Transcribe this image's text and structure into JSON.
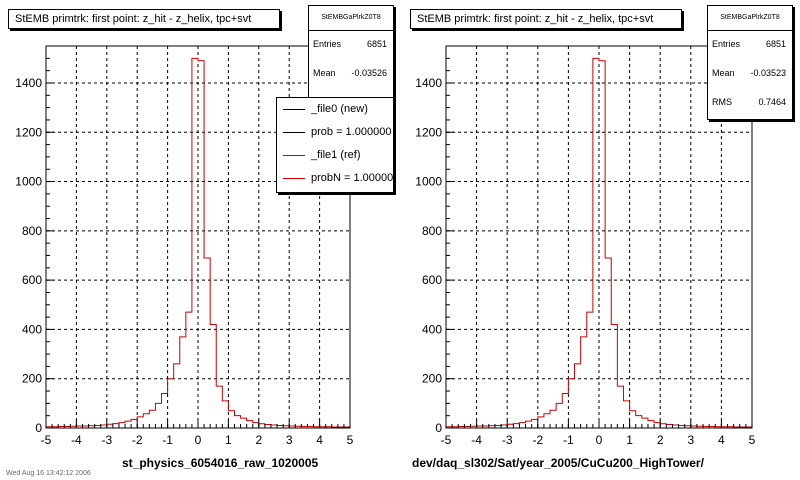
{
  "panels": [
    {
      "title": "StEMB primtrk: first point: z_hit - z_helix, tpc+svt",
      "stats": {
        "name": "StEMBGaPlrkZ0T8",
        "entries_label": "Entries",
        "entries": "6851",
        "mean_label": "Mean",
        "mean": "-0.03526"
      },
      "xlabel": "st_physics_6054016_raw_1020005",
      "legend": [
        {
          "label": "_file0 (new)",
          "color": "#000000"
        },
        {
          "label": "prob = 1.000000",
          "color": "#000000"
        },
        {
          "label": "_file1 (ref)",
          "color": "#cc0000"
        },
        {
          "label": "probN = 1.000000",
          "color": "#cc0000"
        }
      ]
    },
    {
      "title": "StEMB primtrk: first point: z_hit - z_helix, tpc+svt",
      "stats": {
        "name": "StEMBGaPlrkZ0T8",
        "entries_label": "Entries",
        "entries": "6851",
        "mean_label": "Mean",
        "mean": "-0.03523",
        "rms_label": "RMS",
        "rms": "0.7464"
      },
      "xlabel": "dev/daq_sl302/Sat/year_2005/CuCu200_HighTower/"
    }
  ],
  "footer": "Wed Aug 16 13:42:12 2006",
  "chart_data": [
    {
      "type": "bar",
      "style": "step-histogram",
      "title": "StEMB primtrk: first point: z_hit - z_helix, tpc+svt",
      "xlabel": "st_physics_6054016_raw_1020005",
      "ylabel": "",
      "xlim": [
        -5,
        5
      ],
      "ylim": [
        0,
        1550
      ],
      "xticks": [
        -5,
        -4,
        -3,
        -2,
        -1,
        0,
        1,
        2,
        3,
        4,
        5
      ],
      "yticks": [
        0,
        200,
        400,
        600,
        800,
        1000,
        1200,
        1400
      ],
      "grid": true,
      "legend_position": "top-right",
      "bin_width": 0.2,
      "x": [
        -5.0,
        -4.8,
        -4.6,
        -4.4,
        -4.2,
        -4.0,
        -3.8,
        -3.6,
        -3.4,
        -3.2,
        -3.0,
        -2.8,
        -2.6,
        -2.4,
        -2.2,
        -2.0,
        -1.8,
        -1.6,
        -1.4,
        -1.2,
        -1.0,
        -0.8,
        -0.6,
        -0.4,
        -0.2,
        0.0,
        0.2,
        0.4,
        0.6,
        0.8,
        1.0,
        1.2,
        1.4,
        1.6,
        1.8,
        2.0,
        2.2,
        2.4,
        2.6,
        2.8,
        3.0,
        3.2,
        3.4,
        3.6,
        3.8,
        4.0,
        4.2,
        4.4,
        4.6,
        4.8
      ],
      "series": [
        {
          "name": "_file1 (ref)",
          "color": "#cc0000",
          "values": [
            5,
            5,
            6,
            6,
            7,
            8,
            8,
            9,
            10,
            12,
            15,
            18,
            22,
            28,
            35,
            45,
            58,
            72,
            100,
            140,
            200,
            260,
            370,
            470,
            1500,
            1490,
            690,
            420,
            170,
            110,
            70,
            50,
            40,
            30,
            22,
            17,
            14,
            12,
            10,
            9,
            8,
            7,
            6,
            6,
            5,
            5,
            5,
            4,
            4,
            4
          ]
        }
      ]
    },
    {
      "type": "bar",
      "style": "step-histogram",
      "title": "StEMB primtrk: first point: z_hit - z_helix, tpc+svt",
      "xlabel": "dev/daq_sl302/Sat/year_2005/CuCu200_HighTower/",
      "ylabel": "",
      "xlim": [
        -5,
        5
      ],
      "ylim": [
        0,
        1550
      ],
      "xticks": [
        -5,
        -4,
        -3,
        -2,
        -1,
        0,
        1,
        2,
        3,
        4,
        5
      ],
      "yticks": [
        0,
        200,
        400,
        600,
        800,
        1000,
        1200,
        1400
      ],
      "grid": true,
      "bin_width": 0.2,
      "x": [
        -5.0,
        -4.8,
        -4.6,
        -4.4,
        -4.2,
        -4.0,
        -3.8,
        -3.6,
        -3.4,
        -3.2,
        -3.0,
        -2.8,
        -2.6,
        -2.4,
        -2.2,
        -2.0,
        -1.8,
        -1.6,
        -1.4,
        -1.2,
        -1.0,
        -0.8,
        -0.6,
        -0.4,
        -0.2,
        0.0,
        0.2,
        0.4,
        0.6,
        0.8,
        1.0,
        1.2,
        1.4,
        1.6,
        1.8,
        2.0,
        2.2,
        2.4,
        2.6,
        2.8,
        3.0,
        3.2,
        3.4,
        3.6,
        3.8,
        4.0,
        4.2,
        4.4,
        4.6,
        4.8
      ],
      "series": [
        {
          "name": "",
          "color": "#cc0000",
          "values": [
            5,
            5,
            6,
            6,
            7,
            8,
            8,
            9,
            10,
            12,
            15,
            18,
            22,
            28,
            35,
            45,
            58,
            72,
            100,
            140,
            200,
            260,
            370,
            470,
            1500,
            1490,
            690,
            420,
            170,
            110,
            70,
            50,
            40,
            30,
            22,
            17,
            14,
            12,
            10,
            9,
            8,
            7,
            6,
            6,
            5,
            5,
            5,
            4,
            4,
            4
          ]
        }
      ]
    }
  ]
}
